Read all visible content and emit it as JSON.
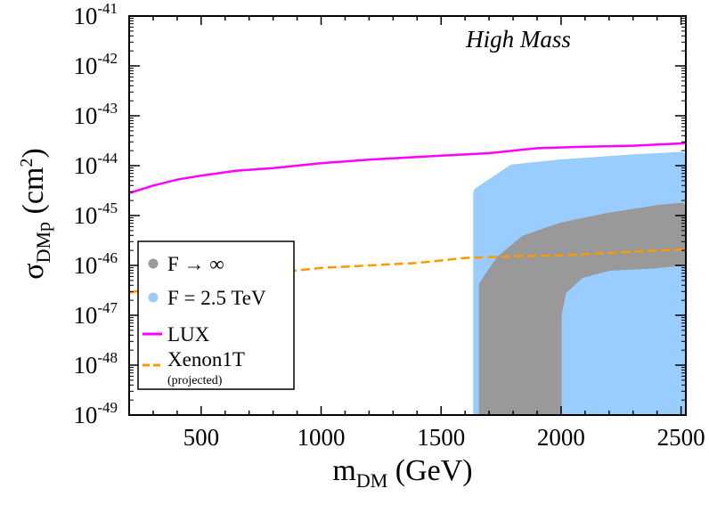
{
  "chart_data": {
    "type": "scatter",
    "title": "",
    "annotation": "High Mass",
    "xlabel": {
      "main": "m",
      "sub": "DM",
      "rest": " (GeV)"
    },
    "ylabel": {
      "main": "σ",
      "sub": "DMp",
      "rest": " (cm",
      "sup": "2",
      "end": ")"
    },
    "xlim": [
      200,
      2520
    ],
    "ylim_log10": [
      -49,
      -41
    ],
    "x_ticks": [
      {
        "value": 500,
        "label": "500"
      },
      {
        "value": 1000,
        "label": "1000"
      },
      {
        "value": 1500,
        "label": "1500"
      },
      {
        "value": 2000,
        "label": "2000"
      },
      {
        "value": 2500,
        "label": "2500"
      }
    ],
    "y_ticks": [
      {
        "exp": -41,
        "base": "10",
        "sup": "-41"
      },
      {
        "exp": -42,
        "base": "10",
        "sup": "-42"
      },
      {
        "exp": -43,
        "base": "10",
        "sup": "-43"
      },
      {
        "exp": -44,
        "base": "10",
        "sup": "-44"
      },
      {
        "exp": -45,
        "base": "10",
        "sup": "-45"
      },
      {
        "exp": -46,
        "base": "10",
        "sup": "-46"
      },
      {
        "exp": -47,
        "base": "10",
        "sup": "-47"
      },
      {
        "exp": -48,
        "base": "10",
        "sup": "-48"
      },
      {
        "exp": -49,
        "base": "10",
        "sup": "-49"
      }
    ],
    "series": [
      {
        "name": "F = 2.5 TeV",
        "kind": "region",
        "color": "#99ccff",
        "description_region": {
          "x_min": 1660,
          "x_max": 2500,
          "log_top": [
            [
              1660,
              -44.55
            ],
            [
              1800,
              -44.1
            ],
            [
              2000,
              -44.0
            ],
            [
              2300,
              -43.9
            ],
            [
              2500,
              -43.85
            ]
          ],
          "log_bottom": -49
        }
      },
      {
        "name": "F → ∞",
        "kind": "band",
        "color": "#999999",
        "band_top": [
          [
            1680,
            -46.4
          ],
          [
            1750,
            -45.9
          ],
          [
            1850,
            -45.5
          ],
          [
            2000,
            -45.25
          ],
          [
            2200,
            -45.05
          ],
          [
            2400,
            -44.9
          ],
          [
            2500,
            -44.85
          ]
        ],
        "band_bottom": [
          [
            1980,
            -49
          ],
          [
            1980,
            -47.0
          ],
          [
            2000,
            -46.5
          ],
          [
            2080,
            -46.15
          ],
          [
            2200,
            -46.0
          ],
          [
            2400,
            -45.95
          ],
          [
            2500,
            -45.9
          ]
        ],
        "band_left_bottom": [
          1680,
          -49
        ]
      },
      {
        "name": "LUX",
        "kind": "line",
        "dash": false,
        "color": "#ff00ff",
        "points": [
          [
            200,
            -44.55
          ],
          [
            300,
            -44.4
          ],
          [
            400,
            -44.28
          ],
          [
            500,
            -44.2
          ],
          [
            650,
            -44.1
          ],
          [
            800,
            -44.05
          ],
          [
            1000,
            -43.95
          ],
          [
            1200,
            -43.88
          ],
          [
            1500,
            -43.8
          ],
          [
            1700,
            -43.75
          ],
          [
            1900,
            -43.65
          ],
          [
            2100,
            -43.62
          ],
          [
            2300,
            -43.6
          ],
          [
            2520,
            -43.55
          ]
        ]
      },
      {
        "name": "Xenon1T",
        "sublabel": "(projected)",
        "kind": "line",
        "dash": true,
        "color": "#ff9900",
        "points": [
          [
            200,
            -46.55
          ],
          [
            400,
            -46.35
          ],
          [
            600,
            -46.2
          ],
          [
            800,
            -46.15
          ],
          [
            1000,
            -46.05
          ],
          [
            1200,
            -46.0
          ],
          [
            1400,
            -45.95
          ],
          [
            1600,
            -45.85
          ],
          [
            1800,
            -45.82
          ],
          [
            2000,
            -45.8
          ],
          [
            2200,
            -45.75
          ],
          [
            2400,
            -45.7
          ],
          [
            2520,
            -45.68
          ]
        ]
      }
    ],
    "legend": {
      "placement": "left-lower",
      "entries": [
        {
          "label": "F → ∞",
          "marker": "dot",
          "color": "#999999"
        },
        {
          "label": "F = 2.5 TeV",
          "marker": "dot",
          "color": "#99ccff"
        },
        {
          "label": "LUX",
          "marker": "line",
          "color": "#ff00ff"
        },
        {
          "label": "Xenon1T",
          "sub": "(projected)",
          "marker": "dashed-line",
          "color": "#ff9900"
        }
      ]
    }
  }
}
